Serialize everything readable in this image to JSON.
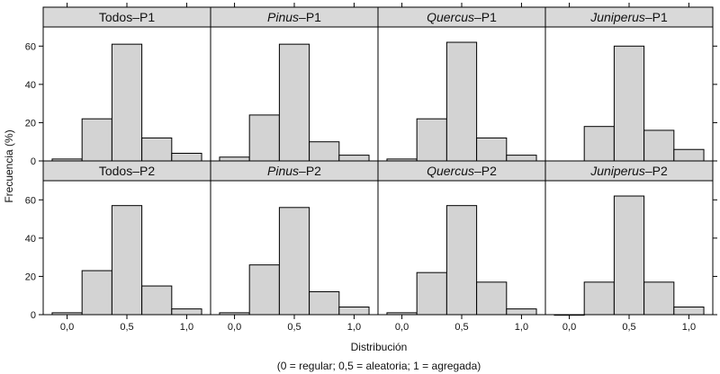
{
  "chart_data": {
    "type": "bar",
    "layout": "lattice 4 columns x 2 rows",
    "xlabel": "Distribución",
    "xlabel_note": "(0 = regular; 0,5 = aleatoria; 1 = agregada)",
    "ylabel": "Frecuencia (%)",
    "xlim": [
      -0.2,
      1.2
    ],
    "ylim": [
      0,
      70
    ],
    "xticks": [
      "0,0",
      "0,5",
      "1,0"
    ],
    "yticks": [
      "0",
      "20",
      "40",
      "60"
    ],
    "bin_width": 0.25,
    "bin_centers": [
      0.0,
      0.25,
      0.5,
      0.75,
      1.0
    ],
    "bar_color": "#d3d3d3",
    "strip_color": "#d9d9d9",
    "panels": [
      {
        "row": 0,
        "col": 0,
        "title_italic": "",
        "title_rest": "Todos–P1",
        "values": [
          1,
          22,
          61,
          12,
          4
        ]
      },
      {
        "row": 0,
        "col": 1,
        "title_italic": "Pinus",
        "title_rest": "–P1",
        "values": [
          2,
          24,
          61,
          10,
          3
        ]
      },
      {
        "row": 0,
        "col": 2,
        "title_italic": "Quercus",
        "title_rest": "–P1",
        "values": [
          1,
          22,
          62,
          12,
          3
        ]
      },
      {
        "row": 0,
        "col": 3,
        "title_italic": "Juniperus",
        "title_rest": "–P1",
        "values": [
          0,
          18,
          60,
          16,
          6
        ]
      },
      {
        "row": 1,
        "col": 0,
        "title_italic": "",
        "title_rest": "Todos–P2",
        "values": [
          1,
          23,
          57,
          15,
          3
        ]
      },
      {
        "row": 1,
        "col": 1,
        "title_italic": "Pinus",
        "title_rest": "–P2",
        "values": [
          1,
          26,
          56,
          12,
          4
        ]
      },
      {
        "row": 1,
        "col": 2,
        "title_italic": "Quercus",
        "title_rest": "–P2",
        "values": [
          1,
          22,
          57,
          17,
          3
        ]
      },
      {
        "row": 1,
        "col": 3,
        "title_italic": "Juniperus",
        "title_rest": "–P2",
        "values": [
          0,
          17,
          62,
          17,
          4
        ]
      }
    ]
  }
}
